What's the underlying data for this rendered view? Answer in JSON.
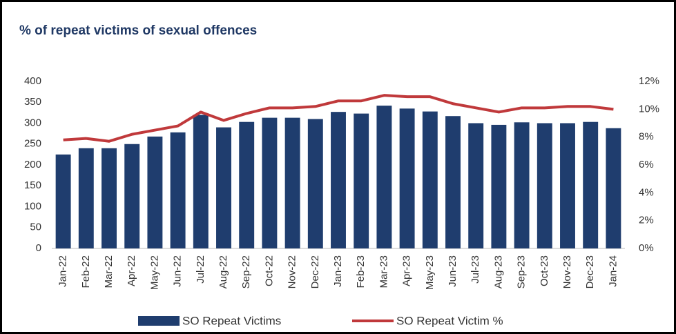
{
  "chart_data": {
    "type": "bar_line",
    "title": "% of repeat victims of sexual offences",
    "categories": [
      "Jan-22",
      "Feb-22",
      "Mar-22",
      "Apr-22",
      "May-22",
      "Jun-22",
      "Jul-22",
      "Aug-22",
      "Sep-22",
      "Oct-22",
      "Nov-22",
      "Dec-22",
      "Jan-23",
      "Feb-23",
      "Mar-23",
      "Apr-23",
      "May-23",
      "Jun-23",
      "Jul-23",
      "Aug-23",
      "Sep-23",
      "Oct-23",
      "Nov-23",
      "Dec-23",
      "Jan-24"
    ],
    "series": [
      {
        "name": "SO Repeat Victims",
        "type": "bar",
        "color": "#1f3d6e",
        "values": [
          225,
          240,
          240,
          250,
          268,
          278,
          320,
          290,
          303,
          313,
          313,
          310,
          327,
          323,
          342,
          335,
          328,
          317,
          300,
          296,
          302,
          300,
          300,
          303,
          288
        ]
      },
      {
        "name": "SO Repeat Victim %",
        "type": "line",
        "axis": "y2",
        "color": "#c0393b",
        "values": [
          7.8,
          7.9,
          7.7,
          8.2,
          8.5,
          8.8,
          9.8,
          9.2,
          9.7,
          10.1,
          10.1,
          10.2,
          10.6,
          10.6,
          11.0,
          10.9,
          10.9,
          10.4,
          10.1,
          9.8,
          10.1,
          10.1,
          10.2,
          10.2,
          10.0
        ]
      }
    ],
    "ylim": [
      0,
      400
    ],
    "yticks": [
      0,
      50,
      100,
      150,
      200,
      250,
      300,
      350,
      400
    ],
    "y2lim": [
      0,
      12
    ],
    "y2ticks": [
      {
        "value": 0,
        "label": "0%"
      },
      {
        "value": 2,
        "label": "2%"
      },
      {
        "value": 4,
        "label": "4%"
      },
      {
        "value": 6,
        "label": "6%"
      },
      {
        "value": 8,
        "label": "8%"
      },
      {
        "value": 10,
        "label": "10%"
      },
      {
        "value": 12,
        "label": "12%"
      }
    ]
  }
}
